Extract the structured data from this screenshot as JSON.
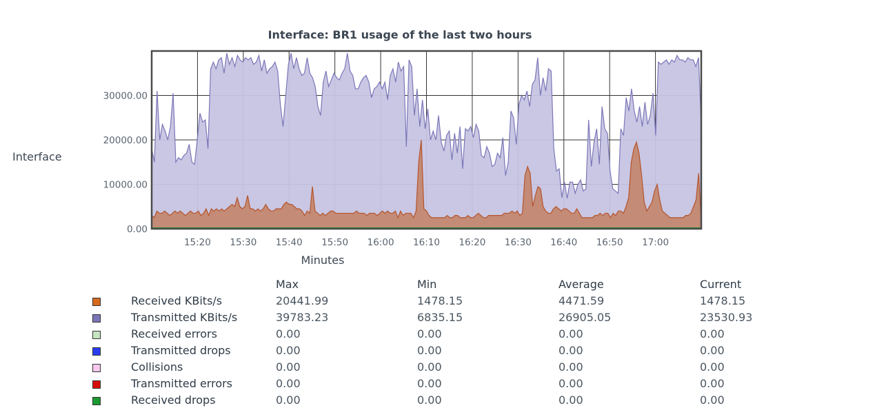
{
  "chart_data": {
    "type": "area",
    "title": "Interface: BR1 usage of the last two hours",
    "xlabel": "Minutes",
    "ylabel": "Interface",
    "ylim": [
      0,
      40000
    ],
    "yticks": [
      "0.00",
      "10000.00",
      "20000.00",
      "30000.00"
    ],
    "xticks": [
      "15:20",
      "15:30",
      "15:40",
      "15:50",
      "16:00",
      "16:10",
      "16:20",
      "16:30",
      "16:40",
      "16:50",
      "17:00"
    ],
    "x_start_minutes": 910,
    "x_end_minutes": 1030,
    "grid": true,
    "series": [
      {
        "name": "Transmitted KBits/s",
        "color": "#7b76b8",
        "fill": "#c6c4e2",
        "values": [
          18000,
          15000,
          31000,
          20000,
          23500,
          22000,
          20000,
          23000,
          30500,
          15000,
          16000,
          15500,
          16500,
          17000,
          19000,
          15000,
          14500,
          20000,
          26000,
          24000,
          24500,
          18000,
          36000,
          37500,
          36000,
          38000,
          38500,
          35000,
          39500,
          37000,
          38500,
          36500,
          39000,
          38000,
          37500,
          38500,
          38000,
          38500,
          37000,
          37500,
          39000,
          35500,
          38000,
          35000,
          36000,
          36500,
          37500,
          35500,
          28000,
          23000,
          30000,
          37000,
          39500,
          36000,
          38500,
          36000,
          34500,
          35000,
          38500,
          35000,
          34000,
          32000,
          27500,
          25500,
          33000,
          35500,
          32000,
          33500,
          35000,
          34000,
          33500,
          35000,
          36000,
          39500,
          35500,
          34500,
          31500,
          31500,
          33000,
          34000,
          34500,
          33000,
          29500,
          31500,
          32000,
          33000,
          31500,
          33000,
          29000,
          34500,
          36000,
          33000,
          37500,
          35500,
          36500,
          18500,
          38000,
          36500,
          25500,
          31500,
          23000,
          29000,
          22500,
          27000,
          20000,
          22000,
          20000,
          25500,
          19500,
          17500,
          21000,
          22000,
          15500,
          21500,
          17000,
          23000,
          13500,
          22500,
          22000,
          23000,
          20500,
          23500,
          22000,
          16500,
          16000,
          18500,
          17000,
          14000,
          14500,
          17000,
          16000,
          20500,
          12000,
          15000,
          26500,
          25000,
          19000,
          28000,
          30000,
          29000,
          31000,
          27500,
          32500,
          33500,
          38500,
          30000,
          34000,
          31000,
          36000,
          35500,
          18000,
          13000,
          13500,
          7000,
          10500,
          6850,
          10500,
          10500,
          8000,
          10000,
          11000,
          8500,
          9000,
          24500,
          14000,
          19500,
          22500,
          14500,
          27500,
          22500,
          21500,
          13000,
          9000,
          8500,
          8000,
          22500,
          21000,
          29500,
          26500,
          31500,
          26500,
          24000,
          27500,
          23000,
          28500,
          23500,
          25500,
          30500,
          21000,
          37500,
          37000,
          37500,
          38000,
          37000,
          38000,
          37500,
          39000,
          38000,
          38000,
          37500,
          38500,
          38000,
          38000,
          36500,
          38500,
          23500
        ]
      },
      {
        "name": "Received KBits/s",
        "color": "#b5542c",
        "fill": "#c48870",
        "values": [
          3000,
          2500,
          4000,
          3500,
          3500,
          4000,
          3500,
          3000,
          3500,
          4000,
          3500,
          4000,
          3500,
          3000,
          3500,
          4000,
          3500,
          3500,
          4000,
          3000,
          3500,
          4500,
          3000,
          4500,
          4000,
          4500,
          4000,
          4500,
          4000,
          4500,
          5000,
          5500,
          5000,
          7000,
          5000,
          4500,
          5000,
          7500,
          4500,
          4500,
          4000,
          4500,
          4000,
          4500,
          5500,
          4500,
          4000,
          4000,
          4500,
          4500,
          4500,
          5500,
          6000,
          5500,
          5500,
          5000,
          4500,
          4500,
          4000,
          3000,
          4000,
          3500,
          9500,
          4000,
          3500,
          3000,
          3500,
          3000,
          3500,
          4000,
          4000,
          3500,
          3500,
          3500,
          3500,
          3500,
          3500,
          3500,
          3500,
          4000,
          3500,
          3500,
          3500,
          3000,
          3500,
          3500,
          3500,
          3000,
          3500,
          4000,
          3500,
          4000,
          3500,
          3500,
          4000,
          2500,
          4000,
          3000,
          3500,
          3500,
          3500,
          2500,
          4000,
          15000,
          20000,
          4500,
          4000,
          3000,
          2500,
          2500,
          2500,
          2500,
          2500,
          2500,
          3000,
          2500,
          2500,
          3000,
          3000,
          2500,
          2500,
          2500,
          3000,
          2500,
          2500,
          3000,
          3500,
          3000,
          2500,
          2500,
          3000,
          3000,
          3000,
          3000,
          3000,
          3000,
          3500,
          3500,
          3500,
          4000,
          3500,
          4000,
          3000,
          3500,
          12000,
          14000,
          12500,
          5000,
          7500,
          9500,
          9000,
          5000,
          4000,
          3500,
          3500,
          4500,
          5000,
          4500,
          4000,
          4500,
          4500,
          4000,
          3500,
          3500,
          4500,
          3500,
          2500,
          2500,
          2500,
          2500,
          2500,
          3000,
          3000,
          3500,
          3000,
          3500,
          3500,
          2500,
          3500,
          3000,
          4000,
          4000,
          3500,
          5000,
          7000,
          15000,
          18000,
          19500,
          17000,
          12000,
          6000,
          4000,
          5000,
          6000,
          8500,
          10000,
          6500,
          4000,
          3500,
          3000,
          2500,
          2500,
          2500,
          2500,
          2500,
          2500,
          3000,
          3000,
          3500,
          5000,
          6500,
          12500,
          1478
        ]
      },
      {
        "name": "Received drops",
        "color": "#1a9a30",
        "constant": 0
      }
    ]
  },
  "legend": {
    "headers": {
      "max": "Max",
      "min": "Min",
      "average": "Average",
      "current": "Current"
    },
    "rows": [
      {
        "label": "Received KBits/s",
        "color": "#d86a1e",
        "max": "20441.99",
        "min": "1478.15",
        "average": "4471.59",
        "current": "1478.15"
      },
      {
        "label": "Transmitted KBits/s",
        "color": "#7b76b8",
        "max": "39783.23",
        "min": "6835.15",
        "average": "26905.05",
        "current": "23530.93"
      },
      {
        "label": "Received errors",
        "color": "#c6e4c0",
        "max": "0.00",
        "min": "0.00",
        "average": "0.00",
        "current": "0.00"
      },
      {
        "label": "Transmitted drops",
        "color": "#2a3cf0",
        "max": "0.00",
        "min": "0.00",
        "average": "0.00",
        "current": "0.00"
      },
      {
        "label": "Collisions",
        "color": "#f6c8ee",
        "max": "0.00",
        "min": "0.00",
        "average": "0.00",
        "current": "0.00"
      },
      {
        "label": "Transmitted errors",
        "color": "#d80c0c",
        "max": "0.00",
        "min": "0.00",
        "average": "0.00",
        "current": "0.00"
      },
      {
        "label": "Received drops",
        "color": "#1a9a30",
        "max": "0.00",
        "min": "0.00",
        "average": "0.00",
        "current": "0.00"
      }
    ]
  }
}
